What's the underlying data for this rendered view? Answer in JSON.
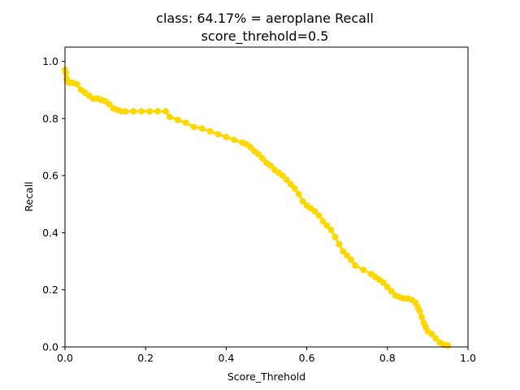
{
  "chart_data": {
    "type": "line",
    "title": "class: 64.17% = aeroplane Recall",
    "subtitle": "score_threhold=0.5",
    "xlabel": "Score_Threhold",
    "ylabel": "Recall",
    "xlim": [
      0.0,
      1.0
    ],
    "ylim": [
      0.0,
      1.05
    ],
    "xticks": [
      0.0,
      0.2,
      0.4,
      0.6,
      0.8,
      1.0
    ],
    "xtick_labels": [
      "0.0",
      "0.2",
      "0.4",
      "0.6",
      "0.8",
      "1.0"
    ],
    "yticks": [
      0.0,
      0.2,
      0.4,
      0.6,
      0.8,
      1.0
    ],
    "ytick_labels": [
      "0.0",
      "0.2",
      "0.4",
      "0.6",
      "0.8",
      "1.0"
    ],
    "grid": false,
    "series": [
      {
        "color": "#ffd700",
        "marker": "circle",
        "x": [
          0.0,
          0.002,
          0.004,
          0.006,
          0.01,
          0.015,
          0.02,
          0.03,
          0.04,
          0.05,
          0.06,
          0.07,
          0.08,
          0.09,
          0.1,
          0.11,
          0.12,
          0.13,
          0.14,
          0.15,
          0.17,
          0.19,
          0.21,
          0.23,
          0.25,
          0.26,
          0.28,
          0.3,
          0.32,
          0.34,
          0.36,
          0.38,
          0.4,
          0.42,
          0.44,
          0.45,
          0.46,
          0.47,
          0.48,
          0.49,
          0.5,
          0.51,
          0.52,
          0.53,
          0.54,
          0.55,
          0.56,
          0.57,
          0.58,
          0.59,
          0.6,
          0.61,
          0.62,
          0.63,
          0.64,
          0.65,
          0.66,
          0.67,
          0.68,
          0.69,
          0.7,
          0.71,
          0.72,
          0.74,
          0.76,
          0.77,
          0.78,
          0.79,
          0.8,
          0.81,
          0.82,
          0.83,
          0.84,
          0.85,
          0.86,
          0.87,
          0.875,
          0.88,
          0.885,
          0.89,
          0.895,
          0.9,
          0.91,
          0.92,
          0.93,
          0.94,
          0.95
        ],
        "y": [
          0.97,
          0.96,
          0.94,
          0.93,
          0.925,
          0.925,
          0.925,
          0.92,
          0.9,
          0.89,
          0.88,
          0.87,
          0.87,
          0.865,
          0.86,
          0.85,
          0.835,
          0.83,
          0.825,
          0.825,
          0.825,
          0.825,
          0.825,
          0.825,
          0.825,
          0.805,
          0.795,
          0.785,
          0.77,
          0.765,
          0.755,
          0.745,
          0.735,
          0.725,
          0.715,
          0.71,
          0.7,
          0.685,
          0.675,
          0.66,
          0.645,
          0.635,
          0.62,
          0.61,
          0.6,
          0.585,
          0.57,
          0.555,
          0.535,
          0.51,
          0.495,
          0.485,
          0.475,
          0.46,
          0.44,
          0.425,
          0.41,
          0.385,
          0.36,
          0.335,
          0.32,
          0.305,
          0.285,
          0.27,
          0.255,
          0.245,
          0.235,
          0.225,
          0.21,
          0.195,
          0.18,
          0.175,
          0.17,
          0.17,
          0.165,
          0.155,
          0.14,
          0.125,
          0.105,
          0.085,
          0.07,
          0.055,
          0.045,
          0.03,
          0.015,
          0.008,
          0.005
        ]
      }
    ]
  }
}
